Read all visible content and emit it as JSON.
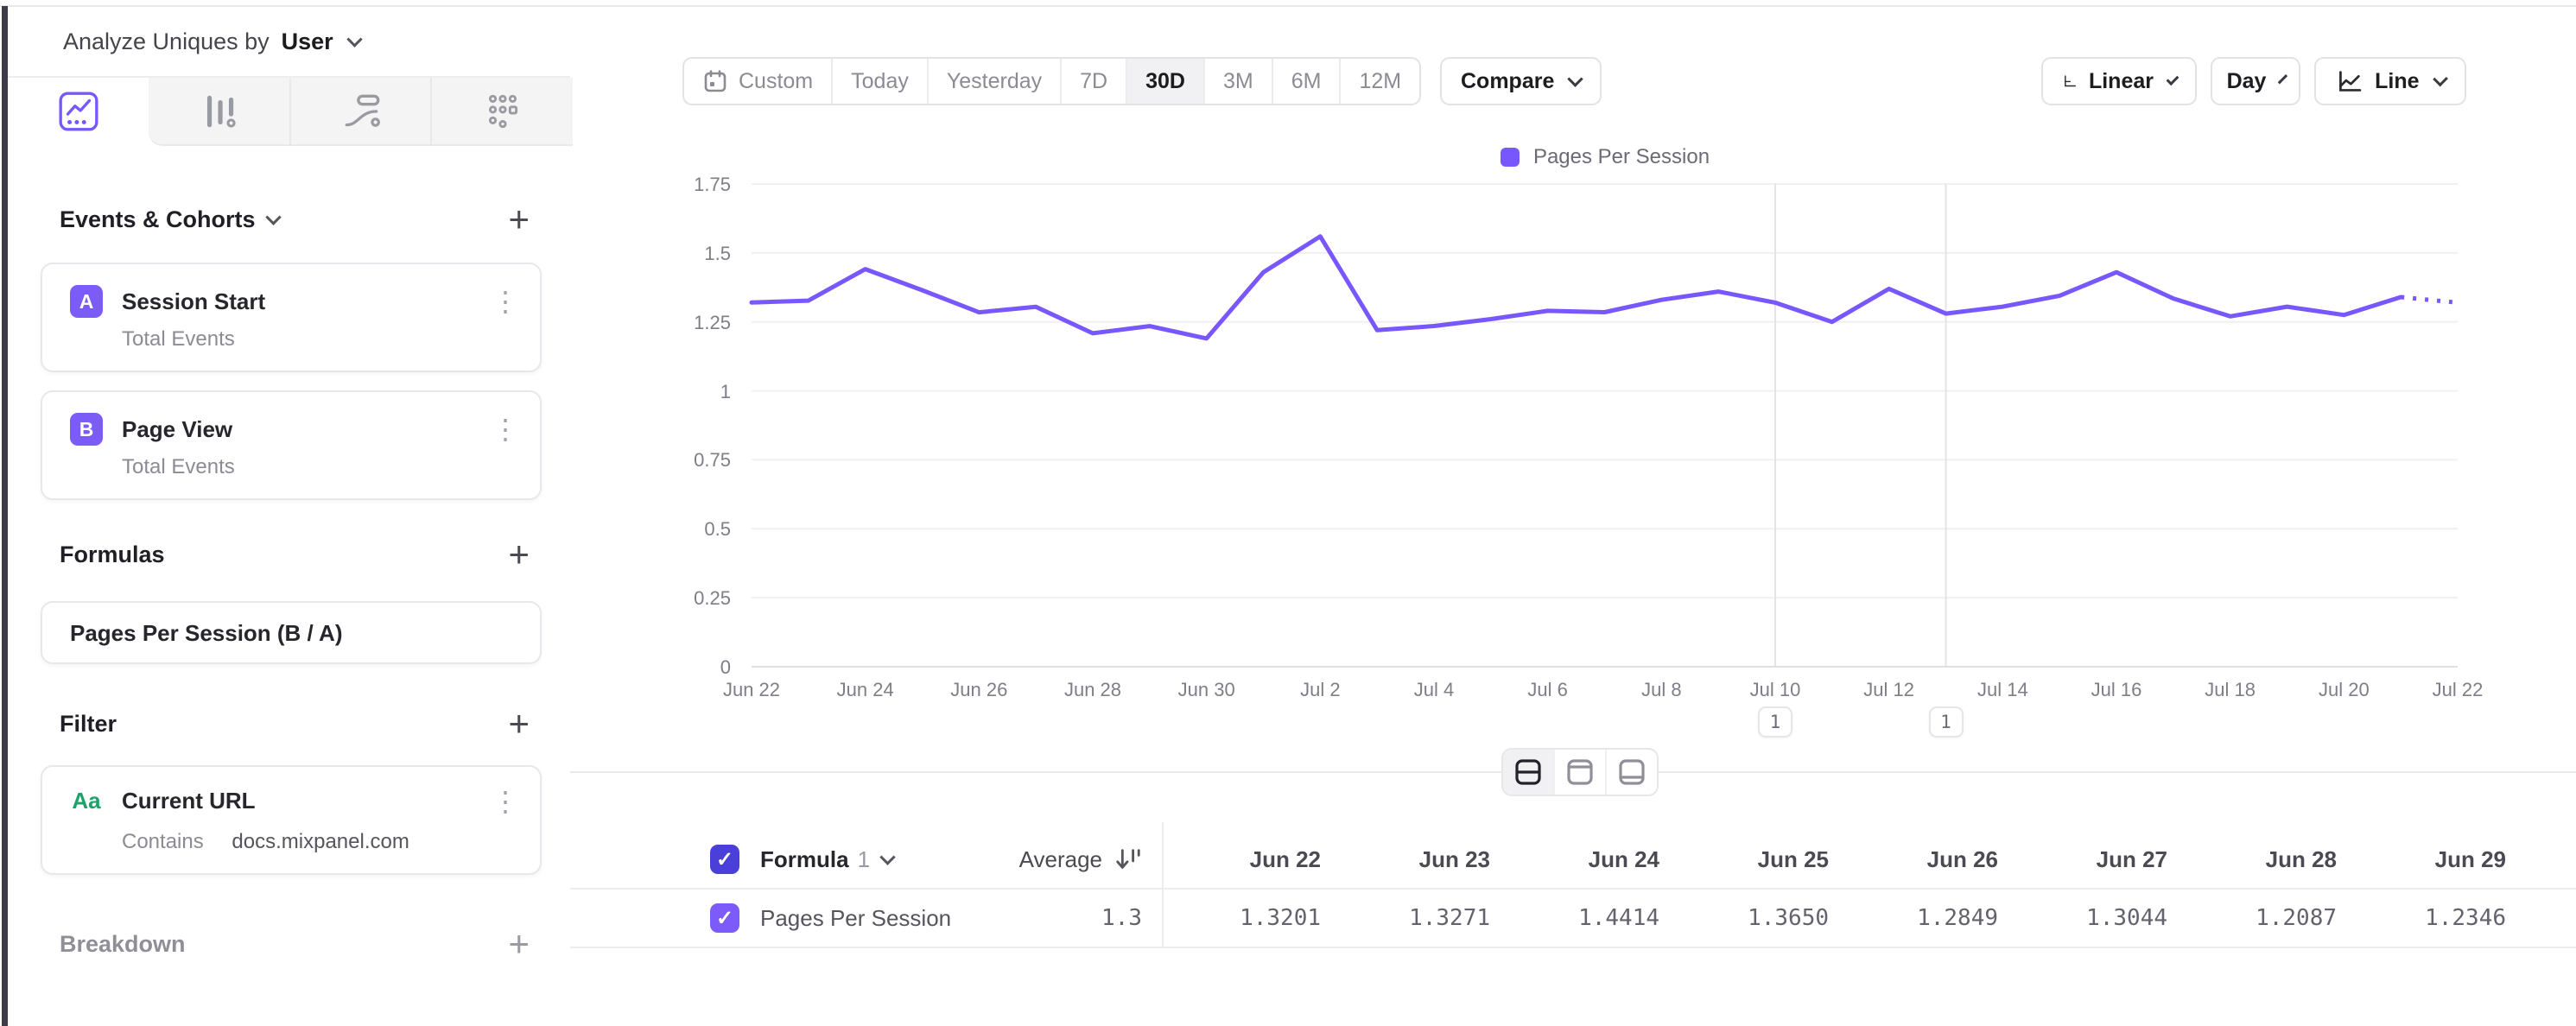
{
  "colors": {
    "accent": "#7857ff",
    "header_checkbox": "#4a3fd8",
    "row_checkbox": "#7d5bfa",
    "filter_badge_green": "#1ea26c"
  },
  "analyze_bar": {
    "prefix": "Analyze Uniques by",
    "value": "User"
  },
  "sidebar": {
    "tabs": [
      {
        "icon": "insights-line-icon",
        "active": true
      },
      {
        "icon": "insights-bar-icon",
        "active": false
      },
      {
        "icon": "insights-flow-icon",
        "active": false
      },
      {
        "icon": "insights-grid-icon",
        "active": false
      }
    ],
    "events": {
      "title": "Events & Cohorts",
      "items": [
        {
          "badge": "A",
          "label": "Session Start",
          "sub": "Total Events"
        },
        {
          "badge": "B",
          "label": "Page View",
          "sub": "Total Events"
        }
      ]
    },
    "formulas": {
      "title": "Formulas",
      "items": [
        {
          "label": "Pages Per Session (B / A)"
        }
      ]
    },
    "filter": {
      "title": "Filter",
      "item": {
        "badge": "Aa",
        "label": "Current URL",
        "operator": "Contains",
        "value": "docs.mixpanel.com"
      }
    },
    "breakdown": {
      "title": "Breakdown"
    }
  },
  "toolbar": {
    "ranges": [
      {
        "label": "Custom",
        "icon": "calendar",
        "selected": false
      },
      {
        "label": "Today",
        "selected": false
      },
      {
        "label": "Yesterday",
        "selected": false
      },
      {
        "label": "7D",
        "selected": false
      },
      {
        "label": "30D",
        "selected": true
      },
      {
        "label": "3M",
        "selected": false
      },
      {
        "label": "6M",
        "selected": false
      },
      {
        "label": "12M",
        "selected": false
      }
    ],
    "compare_label": "Compare",
    "scale_label": "Linear",
    "interval_label": "Day",
    "chart_type_label": "Line"
  },
  "chart_data": {
    "type": "line",
    "legend": "Pages Per Session",
    "series": [
      {
        "name": "Pages Per Session",
        "color": "#7857ff",
        "values": [
          1.3201,
          1.3271,
          1.4414,
          1.365,
          1.2849,
          1.3044,
          1.2087,
          1.2346,
          1.19,
          1.43,
          1.56,
          1.22,
          1.235,
          1.26,
          1.29,
          1.285,
          1.33,
          1.36,
          1.32,
          1.25,
          1.37,
          1.28,
          1.305,
          1.345,
          1.43,
          1.335,
          1.27,
          1.305,
          1.275,
          1.34,
          1.32
        ],
        "dashed_from_index": 29
      }
    ],
    "x": [
      "Jun 22",
      "Jun 23",
      "Jun 24",
      "Jun 25",
      "Jun 26",
      "Jun 27",
      "Jun 28",
      "Jun 29",
      "Jun 30",
      "Jul 1",
      "Jul 2",
      "Jul 3",
      "Jul 4",
      "Jul 5",
      "Jul 6",
      "Jul 7",
      "Jul 8",
      "Jul 9",
      "Jul 10",
      "Jul 11",
      "Jul 12",
      "Jul 13",
      "Jul 14",
      "Jul 15",
      "Jul 16",
      "Jul 17",
      "Jul 18",
      "Jul 19",
      "Jul 20",
      "Jul 21",
      "Jul 22"
    ],
    "xticks_every": 2,
    "ylim": [
      0,
      1.75
    ],
    "yticks": [
      0,
      0.25,
      0.5,
      0.75,
      1,
      1.25,
      1.5,
      1.75
    ],
    "grid": true,
    "legend_position": "top-center",
    "annotations": [
      {
        "index": 18,
        "x": "Jul 10",
        "label": "1"
      },
      {
        "index": 21,
        "x": "Jul 13",
        "label": "1"
      }
    ]
  },
  "table": {
    "header": {
      "formula_label": "Formula",
      "formula_index": "1",
      "average_label": "Average"
    },
    "columns": [
      "Jun 22",
      "Jun 23",
      "Jun 24",
      "Jun 25",
      "Jun 26",
      "Jun 27",
      "Jun 28",
      "Jun 29"
    ],
    "row": {
      "label": "Pages Per Session",
      "average": "1.3",
      "values": [
        "1.3201",
        "1.3271",
        "1.4414",
        "1.3650",
        "1.2849",
        "1.3044",
        "1.2087",
        "1.2346"
      ]
    }
  }
}
